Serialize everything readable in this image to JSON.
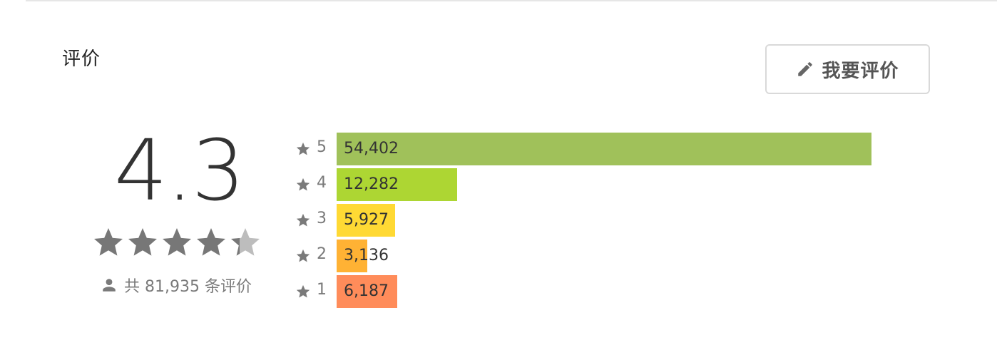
{
  "section": {
    "title": "评价"
  },
  "write_review": {
    "label": "我要评价",
    "icon": "pencil-icon"
  },
  "summary": {
    "score": "4.3",
    "rating_value": 4.3,
    "rating_max": 5,
    "star_color_filled": "#777777",
    "star_color_empty": "#bdbdbd",
    "total_label": "共 81,935 条评价",
    "person_icon": "person-icon"
  },
  "distribution": {
    "bars": [
      {
        "level": "5",
        "count_text": "54,402",
        "count": 54402,
        "color": "#a0c15a"
      },
      {
        "level": "4",
        "count_text": "12,282",
        "count": 12282,
        "color": "#add633"
      },
      {
        "level": "3",
        "count_text": "5,927",
        "count": 5927,
        "color": "#ffd934"
      },
      {
        "level": "2",
        "count_text": "3,136",
        "count": 3136,
        "color": "#ffb234"
      },
      {
        "level": "1",
        "count_text": "6,187",
        "count": 6187,
        "color": "#ff8c5a"
      }
    ]
  },
  "chart_data": {
    "type": "bar",
    "categories": [
      "5",
      "4",
      "3",
      "2",
      "1"
    ],
    "values": [
      54402,
      12282,
      5927,
      3136,
      6187
    ]
  }
}
